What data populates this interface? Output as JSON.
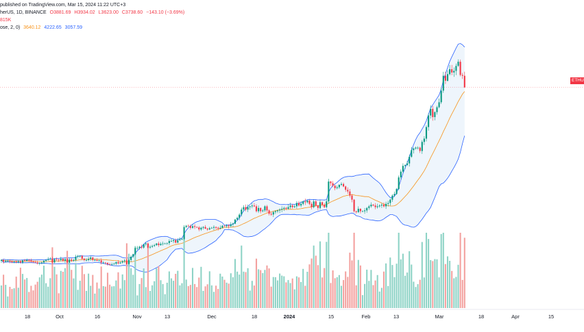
{
  "header": {
    "published": "herUS, 1D, BINANCE",
    "credit": "published on TradingView.com, Mar 15, 2024 11:22 UTC+3",
    "ohlc": {
      "open": "O3881.69",
      "high": "H3934.02",
      "low": "L3623.00",
      "close": "C3738.60",
      "change": "−143.10 (−3.69%)"
    },
    "volume": "815K",
    "bb": {
      "label": "ose, 2, 0)",
      "basis": "3640.12",
      "upper": "4222.65",
      "lower": "3057.59"
    }
  },
  "price_tag": "ETHUS",
  "colors": {
    "up": "#089981",
    "down": "#f23645",
    "basis": "#f7931a",
    "band": "#2962ff",
    "band_fill": "#e3eefa",
    "vol_up": "#8ed3c6",
    "vol_down": "#f3a19f"
  },
  "chart_data": {
    "type": "candlestick",
    "x_ticks": [
      "18",
      "Oct",
      "16",
      "Nov",
      "13",
      "Dec",
      "18",
      "2024",
      "15",
      "Feb",
      "13",
      "Mar",
      "18",
      "Apr",
      "15"
    ],
    "start_date": "2023-09-01",
    "bb_start": "2023-09-01",
    "closes": [
      1650,
      1630,
      1640,
      1640,
      1635,
      1625,
      1630,
      1625,
      1635,
      1620,
      1645,
      1640,
      1650,
      1645,
      1630,
      1625,
      1620,
      1610,
      1615,
      1620,
      1640,
      1650,
      1660,
      1665,
      1620,
      1660,
      1655,
      1650,
      1665,
      1640,
      1660,
      1620,
      1655,
      1640,
      1650,
      1690,
      1700,
      1700,
      1665,
      1650,
      1650,
      1665,
      1680,
      1650,
      1650,
      1640,
      1645,
      1620,
      1620,
      1615,
      1600,
      1595,
      1600,
      1605,
      1625,
      1610,
      1620,
      1635,
      1645,
      1600,
      1650,
      1690,
      1720,
      1795,
      1795,
      1810,
      1800,
      1840,
      1850,
      1800,
      1810,
      1820,
      1830,
      1850,
      1830,
      1845,
      1850,
      1850,
      1855,
      1880,
      1880,
      1890,
      1860,
      1890,
      1900,
      1905,
      2050,
      2065,
      2060,
      2040,
      2060,
      2050,
      2045,
      2020,
      2040,
      2050,
      2030,
      2020,
      2035,
      2040,
      2050,
      2040,
      2030,
      2040,
      2065,
      2060,
      2070,
      2060,
      2080,
      2090,
      2140,
      2160,
      2200,
      2260,
      2290,
      2260,
      2290,
      2300,
      2310,
      2300,
      2240,
      2280,
      2240,
      2250,
      2300,
      2250,
      2210,
      2200,
      2230,
      2240,
      2250,
      2260,
      2270,
      2280,
      2270,
      2290,
      2310,
      2290,
      2300,
      2340,
      2310,
      2330,
      2360,
      2350,
      2370,
      2330,
      2290,
      2360,
      2310,
      2280,
      2350,
      2320,
      2290,
      2360,
      2600,
      2580,
      2550,
      2520,
      2530,
      2560,
      2570,
      2540,
      2500,
      2480,
      2430,
      2380,
      2240,
      2230,
      2270,
      2240,
      2240,
      2250,
      2280,
      2300,
      2320,
      2310,
      2290,
      2300,
      2310,
      2320,
      2300,
      2330,
      2340,
      2380,
      2430,
      2450,
      2510,
      2650,
      2720,
      2790,
      2800,
      2820,
      2900,
      2980,
      3000,
      3010,
      3010,
      2970,
      3080,
      3120,
      3260,
      3400,
      3480,
      3380,
      3440,
      3500,
      3560,
      3700,
      3880,
      3820,
      3900,
      3960,
      3920,
      3940,
      4000,
      4050,
      3890,
      3880,
      3740
    ],
    "x_label": "",
    "y_label": "",
    "bollinger": {
      "length": 20,
      "mult": 2
    }
  }
}
